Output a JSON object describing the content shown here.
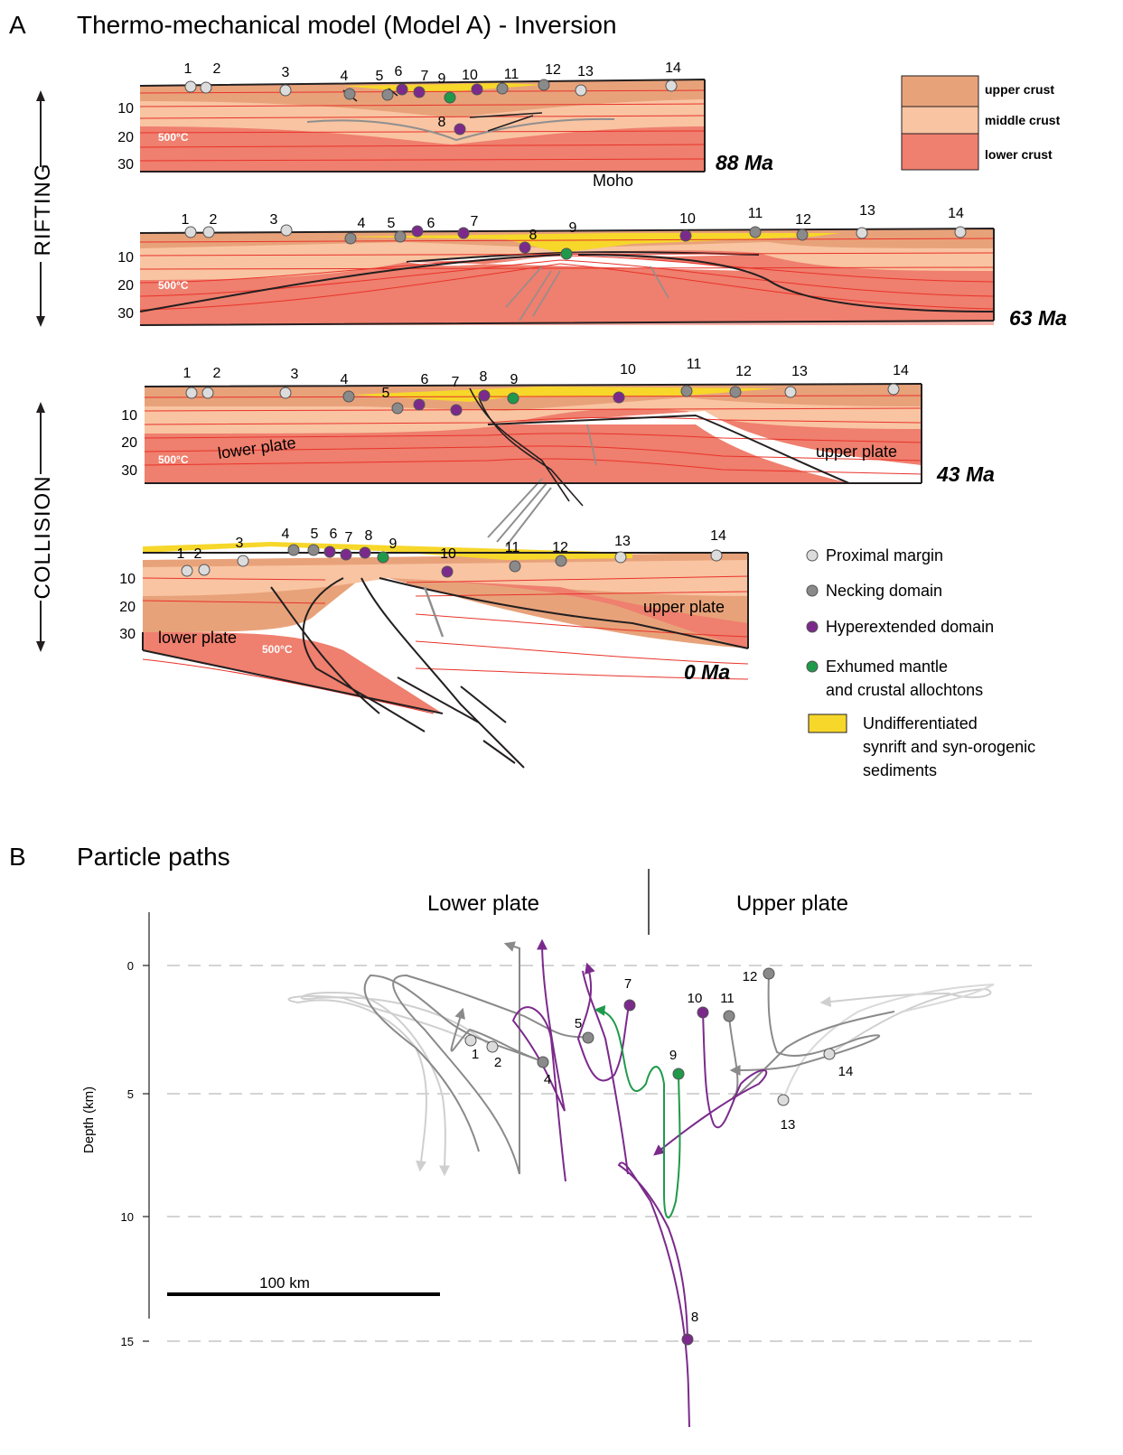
{
  "panel_a": {
    "letter": "A",
    "title": "Thermo-mechanical model (Model A) - Inversion",
    "side_labels": {
      "rifting": "RIFTING",
      "collision": "COLLISION"
    },
    "depth_ticks": [
      "10",
      "20",
      "30"
    ],
    "temperature_label": "500°C",
    "moho_label": "Moho",
    "lower_plate": "lower plate",
    "upper_plate": "upper plate",
    "sections": [
      {
        "age": "88 Ma"
      },
      {
        "age": "63 Ma"
      },
      {
        "age": "43 Ma"
      },
      {
        "age": "0 Ma"
      }
    ],
    "crust_legend": [
      {
        "label": "upper crust",
        "color": "#e8a27a"
      },
      {
        "label": "middle crust",
        "color": "#f9c4a2"
      },
      {
        "label": "lower crust",
        "color": "#ef7f6e"
      }
    ],
    "marker_legend": [
      {
        "label": "Proximal margin",
        "color": "#dcdcdc"
      },
      {
        "label": "Necking domain",
        "color": "#8a8a8a"
      },
      {
        "label": "Hyperextended domain",
        "color": "#7b2a8c"
      },
      {
        "label_line1": "Exhumed mantle",
        "label_line2": "and crustal allochtons",
        "color": "#1f9a4a"
      },
      {
        "label_line1": "Undifferentiated",
        "label_line2": "synrift and syn-orogenic",
        "label_line3": "sediments",
        "color": "#f6d72a"
      }
    ],
    "section_numbers": [
      "1",
      "2",
      "3",
      "4",
      "5",
      "6",
      "7",
      "8",
      "9",
      "10",
      "11",
      "12",
      "13",
      "14"
    ]
  },
  "panel_b": {
    "letter": "B",
    "title": "Particle paths",
    "lower_plate": "Lower plate",
    "upper_plate": "Upper plate",
    "y_axis_label": "Depth (km)",
    "y_ticks": [
      "0",
      "5",
      "10",
      "15"
    ],
    "scale_bar_label": "100 km",
    "point_labels": [
      "1",
      "2",
      "4",
      "5",
      "7",
      "9",
      "10",
      "11",
      "12",
      "13",
      "14",
      "8"
    ]
  },
  "colors": {
    "proximal": "#dcdcdc",
    "necking": "#8a8a8a",
    "hyperextended": "#7b2a8c",
    "exhumed": "#1f9a4a",
    "sediment": "#f6d72a",
    "upper_crust": "#e8a27a",
    "middle_crust": "#f9c4a2",
    "lower_crust": "#ef7f6e",
    "isotherm": "#e8332a"
  }
}
